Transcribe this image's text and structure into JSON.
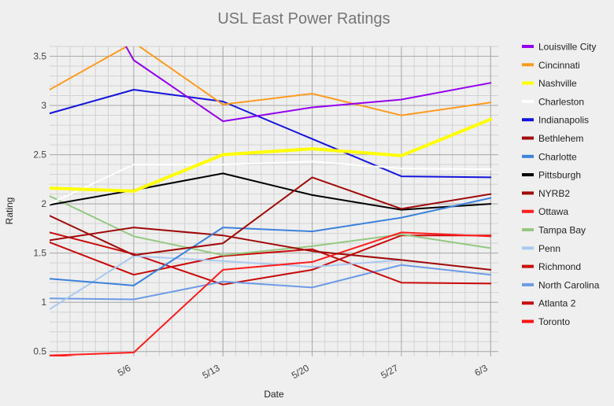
{
  "chart_data": {
    "type": "line",
    "title": "USL East Power Ratings",
    "xlabel": "Date",
    "ylabel": "Rating",
    "x_ticks": [
      {
        "label": "5/6",
        "day": 6
      },
      {
        "label": "5/13",
        "day": 13
      },
      {
        "label": "5/20",
        "day": 20
      },
      {
        "label": "5/27",
        "day": 27
      },
      {
        "label": "6/3",
        "day": 34
      }
    ],
    "x_range": [
      -0.6,
      34.6
    ],
    "y_ticks": [
      "0.5",
      "1",
      "1.5",
      "2",
      "2.5",
      "3",
      "3.5"
    ],
    "ylim": [
      0.45,
      3.6
    ],
    "grid": true,
    "legend_position": "right",
    "series": [
      {
        "name": "Louisville City",
        "color": "#9400f0",
        "width": 2,
        "x": [
          5,
          6,
          13,
          20,
          27,
          34
        ],
        "y": [
          3.69,
          3.46,
          2.84,
          2.98,
          3.06,
          3.23
        ]
      },
      {
        "name": "Cincinnati",
        "color": "#ff9b1e",
        "width": 2,
        "x": [
          -0.6,
          6,
          13,
          20,
          27,
          34
        ],
        "y": [
          3.16,
          3.64,
          3.01,
          3.12,
          2.9,
          3.03
        ]
      },
      {
        "name": "Nashville",
        "color": "#ffff00",
        "width": 4,
        "x": [
          -0.6,
          6,
          13,
          20,
          27,
          34
        ],
        "y": [
          2.16,
          2.13,
          2.5,
          2.56,
          2.49,
          2.86
        ]
      },
      {
        "name": "Charleston",
        "color": "#ffffff",
        "width": 2,
        "x": [
          -0.6,
          6,
          13,
          20,
          27,
          34
        ],
        "y": [
          2.0,
          2.4,
          2.4,
          2.43,
          2.36,
          2.35
        ]
      },
      {
        "name": "Indianapolis",
        "color": "#1414dc",
        "width": 2,
        "x": [
          -0.6,
          6,
          13,
          20,
          27,
          34
        ],
        "y": [
          2.92,
          3.16,
          3.04,
          2.66,
          2.28,
          2.27
        ]
      },
      {
        "name": "Bethlehem",
        "color": "#a00a0a",
        "width": 2,
        "x": [
          -0.6,
          6,
          13,
          20,
          27,
          34
        ],
        "y": [
          1.88,
          1.48,
          1.6,
          2.27,
          1.95,
          2.1
        ]
      },
      {
        "name": "Charlotte",
        "color": "#3c82dc",
        "width": 2,
        "x": [
          -0.6,
          6,
          13,
          20,
          27,
          34
        ],
        "y": [
          1.24,
          1.17,
          1.76,
          1.72,
          1.86,
          2.06
        ]
      },
      {
        "name": "Pittsburgh",
        "color": "#000000",
        "width": 2,
        "x": [
          -0.6,
          6,
          13,
          20,
          27,
          34
        ],
        "y": [
          1.99,
          2.14,
          2.31,
          2.09,
          1.94,
          2.0
        ]
      },
      {
        "name": "NYRB2",
        "color": "#a00a0a",
        "width": 2,
        "x": [
          -0.6,
          6,
          13,
          20,
          27,
          34
        ],
        "y": [
          1.63,
          1.76,
          1.68,
          1.52,
          1.43,
          1.33
        ]
      },
      {
        "name": "Ottawa",
        "color": "#ff1e1e",
        "width": 2,
        "x": [
          -0.6,
          6,
          13,
          20,
          27,
          34
        ],
        "y": [
          0.46,
          0.49,
          1.33,
          1.41,
          1.71,
          1.67
        ]
      },
      {
        "name": "Tampa Bay",
        "color": "#96c882",
        "width": 2,
        "x": [
          -0.6,
          6,
          13,
          20,
          27,
          34
        ],
        "y": [
          2.08,
          1.67,
          1.48,
          1.57,
          1.69,
          1.55
        ]
      },
      {
        "name": "Penn",
        "color": "#aac8f0",
        "width": 2,
        "x": [
          -0.6,
          6,
          13,
          20,
          27
        ],
        "y": [
          0.93,
          1.47,
          1.42,
          1.36,
          1.43
        ]
      },
      {
        "name": "Richmond",
        "color": "#c80a0a",
        "width": 2,
        "x": [
          -0.6,
          6,
          13,
          20,
          27,
          34
        ],
        "y": [
          1.61,
          1.28,
          1.47,
          1.54,
          1.2,
          1.19
        ]
      },
      {
        "name": "North Carolina",
        "color": "#6e9be6",
        "width": 2,
        "x": [
          -0.6,
          6,
          13,
          20,
          27,
          34
        ],
        "y": [
          1.04,
          1.03,
          1.21,
          1.15,
          1.38,
          1.28
        ]
      },
      {
        "name": "Atlanta 2",
        "color": "#c80a0a",
        "width": 2,
        "x": [
          -0.6,
          6,
          13,
          20,
          27,
          34
        ],
        "y": [
          1.71,
          1.49,
          1.18,
          1.33,
          1.68,
          1.68
        ]
      },
      {
        "name": "Toronto",
        "color": "#ff1414",
        "width": 2,
        "x": [
          -0.6,
          5
        ],
        "y": [
          0.46,
          0.41
        ]
      }
    ]
  }
}
